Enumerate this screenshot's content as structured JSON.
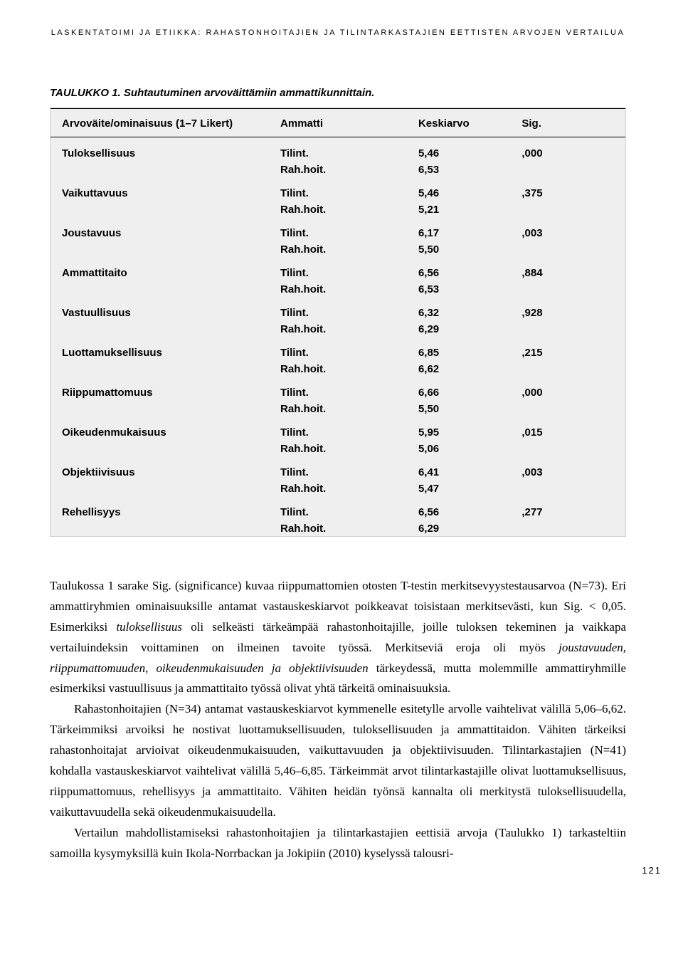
{
  "running_head": "Laskentatoimi ja etiikka: rahastonhoitajien ja tilintarkastajien eettisten arvojen vertailua",
  "table": {
    "caption_label": "TAULUKKO 1.",
    "caption_text": "Suhtautuminen arvoväittämiin ammattikunnittain.",
    "columns": {
      "attr": "Arvoväite/ominaisuus (1–7 Likert)",
      "amm": "Ammatti",
      "mean": "Keskiarvo",
      "sig": "Sig."
    },
    "prof_labels": {
      "tilint": "Tilint.",
      "rahhoit": "Rah.hoit."
    },
    "rows": [
      {
        "attr": "Tuloksellisuus",
        "tilint": "5,46",
        "rahhoit": "6,53",
        "sig": ",000"
      },
      {
        "attr": "Vaikuttavuus",
        "tilint": "5,46",
        "rahhoit": "5,21",
        "sig": ",375"
      },
      {
        "attr": "Joustavuus",
        "tilint": "6,17",
        "rahhoit": "5,50",
        "sig": ",003"
      },
      {
        "attr": "Ammattitaito",
        "tilint": "6,56",
        "rahhoit": "6,53",
        "sig": ",884"
      },
      {
        "attr": "Vastuullisuus",
        "tilint": "6,32",
        "rahhoit": "6,29",
        "sig": ",928"
      },
      {
        "attr": "Luottamuksellisuus",
        "tilint": "6,85",
        "rahhoit": "6,62",
        "sig": ",215"
      },
      {
        "attr": "Riippumattomuus",
        "tilint": "6,66",
        "rahhoit": "5,50",
        "sig": ",000"
      },
      {
        "attr": "Oikeudenmukaisuus",
        "tilint": "5,95",
        "rahhoit": "5,06",
        "sig": ",015"
      },
      {
        "attr": "Objektiivisuus",
        "tilint": "6,41",
        "rahhoit": "5,47",
        "sig": ",003"
      },
      {
        "attr": "Rehellisyys",
        "tilint": "6,56",
        "rahhoit": "6,29",
        "sig": ",277"
      }
    ]
  },
  "paragraphs": {
    "p1_a": "Taulukossa 1 sarake Sig. (significance) kuvaa riippumattomien otosten T-testin merkitsevyystestausarvoa (N=73). Eri ammattiryhmien ominaisuuksille antamat vastauskeskiarvot poikkeavat toisistaan merkitsevästi, kun Sig. < 0,05. Esimerkiksi ",
    "p1_em1": "tuloksellisuus",
    "p1_b": " oli selkeästi tärkeämpää rahastonhoitajille, joille tuloksen tekeminen ja vaikkapa vertailuindeksin voittaminen on ilmeinen tavoite työssä. Merkitseviä eroja oli myös ",
    "p1_em2": "joustavuuden, riippumattomuuden, oikeudenmukaisuuden ja objektiivisuuden",
    "p1_c": " tärkeydessä, mutta molemmille ammattiryhmille esimerkiksi vastuullisuus ja ammattitaito työssä olivat yhtä tärkeitä ominaisuuksia.",
    "p2": "Rahastonhoitajien (N=34) antamat vastauskeskiarvot kymmenelle esitetylle arvolle vaihtelivat välillä 5,06–6,62. Tärkeimmiksi arvoiksi he nostivat luottamuksellisuuden, tuloksellisuuden ja ammattitaidon. Vähiten tärkeiksi rahastonhoitajat arvioivat oikeudenmukaisuuden, vaikuttavuuden ja objektiivisuuden. Tilintarkastajien (N=41) kohdalla vastauskeskiarvot vaihtelivat välillä 5,46–6,85. Tärkeimmät arvot tilintarkastajille olivat luottamuksellisuus, riippumattomuus, rehellisyys ja ammattitaito. Vähiten heidän työnsä kannalta oli merkitystä tuloksellisuudella, vaikuttavuudella sekä oikeudenmukaisuudella.",
    "p3": "Vertailun mahdollistamiseksi rahastonhoitajien ja tilintarkastajien eettisiä arvoja (Taulukko 1) tarkasteltiin samoilla kysymyksillä kuin Ikola-Norrbackan ja Jokipiin (2010) kyselyssä talousri-"
  },
  "page_number": "121"
}
